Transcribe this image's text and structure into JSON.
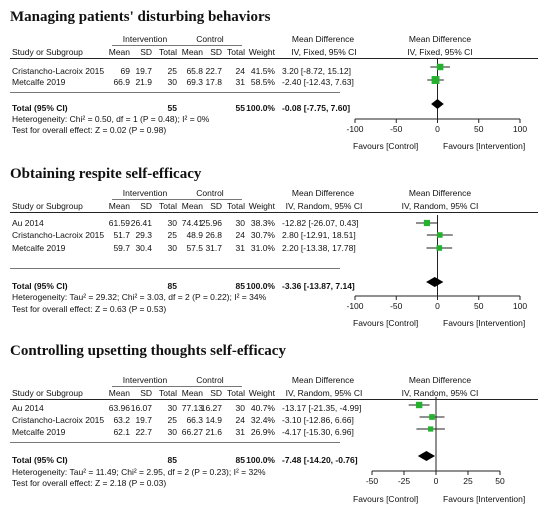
{
  "columns": {
    "study": "Study or Subgroup",
    "group1": "Intervention",
    "group2": "Control",
    "mean": "Mean",
    "sd": "SD",
    "total": "Total",
    "weight": "Weight",
    "md": "Mean Difference",
    "total_row": "Total (95% CI)"
  },
  "chart_data": [
    {
      "type": "forest",
      "title": "Managing patients' disturbing behaviors",
      "method": "IV, Fixed, 95% CI",
      "studies": [
        {
          "name": "Cristancho-Lacroix 2015",
          "mean1": "69",
          "sd1": "19.7",
          "n1": "25",
          "mean2": "65.8",
          "sd2": "22.7",
          "n2": "24",
          "weight": "41.5%",
          "ci_text": "3.20 [-8.72, 15.12]",
          "md": 3.2,
          "lo": -8.72,
          "hi": 15.12
        },
        {
          "name": "Metcalfe 2019",
          "mean1": "66.9",
          "sd1": "21.9",
          "n1": "30",
          "mean2": "69.3",
          "sd2": "17.8",
          "n2": "31",
          "weight": "58.5%",
          "ci_text": "-2.40 [-12.43, 7.63]",
          "md": -2.4,
          "lo": -12.43,
          "hi": 7.63
        }
      ],
      "total": {
        "n1": "55",
        "n2": "55",
        "weight": "100.0%",
        "ci_text": "-0.08 [-7.75, 7.60]",
        "md": -0.08,
        "lo": -7.75,
        "hi": 7.6
      },
      "heterogeneity": "Heterogeneity: Chi² = 0.50, df = 1 (P = 0.48); I² = 0%",
      "overall_test": "Test for overall effect: Z = 0.02 (P = 0.98)",
      "axis": {
        "min": -100,
        "max": 100,
        "ticks": [
          -100,
          -50,
          0,
          50,
          100
        ]
      },
      "favours_left": "Favours [Control]",
      "favours_right": "Favours [Intervention]",
      "marker_color": "#22b22d"
    },
    {
      "type": "forest",
      "title": "Obtaining respite self-efficacy",
      "method": "IV, Random, 95% CI",
      "studies": [
        {
          "name": "Au 2014",
          "mean1": "61.59",
          "sd1": "26.41",
          "n1": "30",
          "mean2": "74.41",
          "sd2": "25.96",
          "n2": "30",
          "weight": "38.3%",
          "ci_text": "-12.82 [-26.07, 0.43]",
          "md": -12.82,
          "lo": -26.07,
          "hi": 0.43
        },
        {
          "name": "Cristancho-Lacroix 2015",
          "mean1": "51.7",
          "sd1": "29.3",
          "n1": "25",
          "mean2": "48.9",
          "sd2": "26.8",
          "n2": "24",
          "weight": "30.7%",
          "ci_text": "2.80 [-12.91, 18.51]",
          "md": 2.8,
          "lo": -12.91,
          "hi": 18.51
        },
        {
          "name": "Metcalfe 2019",
          "mean1": "59.7",
          "sd1": "30.4",
          "n1": "30",
          "mean2": "57.5",
          "sd2": "31.7",
          "n2": "31",
          "weight": "31.0%",
          "ci_text": "2.20 [-13.38, 17.78]",
          "md": 2.2,
          "lo": -13.38,
          "hi": 17.78
        }
      ],
      "total": {
        "n1": "85",
        "n2": "85",
        "weight": "100.0%",
        "ci_text": "-3.36 [-13.87, 7.14]",
        "md": -3.36,
        "lo": -13.87,
        "hi": 7.14
      },
      "heterogeneity": "Heterogeneity: Tau² = 29.32; Chi² = 3.03, df = 2 (P = 0.22); I² = 34%",
      "overall_test": "Test for overall effect: Z = 0.63 (P = 0.53)",
      "axis": {
        "min": -100,
        "max": 100,
        "ticks": [
          -100,
          -50,
          0,
          50,
          100
        ]
      },
      "favours_left": "Favours [Control]",
      "favours_right": "Favours [Intervention]",
      "marker_color": "#22b22d"
    },
    {
      "type": "forest",
      "title": "Controlling upsetting thoughts self-efficacy",
      "method": "IV, Random, 95% CI",
      "studies": [
        {
          "name": "Au 2014",
          "mean1": "63.96",
          "sd1": "16.07",
          "n1": "30",
          "mean2": "77.13",
          "sd2": "16.27",
          "n2": "30",
          "weight": "40.7%",
          "ci_text": "-13.17 [-21.35, -4.99]",
          "md": -13.17,
          "lo": -21.35,
          "hi": -4.99
        },
        {
          "name": "Cristancho-Lacroix 2015",
          "mean1": "63.2",
          "sd1": "19.7",
          "n1": "25",
          "mean2": "66.3",
          "sd2": "14.9",
          "n2": "24",
          "weight": "32.4%",
          "ci_text": "-3.10 [-12.86, 6.66]",
          "md": -3.1,
          "lo": -12.86,
          "hi": 6.66
        },
        {
          "name": "Metcalfe 2019",
          "mean1": "62.1",
          "sd1": "22.7",
          "n1": "30",
          "mean2": "66.27",
          "sd2": "21.6",
          "n2": "31",
          "weight": "26.9%",
          "ci_text": "-4.17 [-15.30, 6.96]",
          "md": -4.17,
          "lo": -15.3,
          "hi": 6.96
        }
      ],
      "total": {
        "n1": "85",
        "n2": "85",
        "weight": "100.0%",
        "ci_text": "-7.48 [-14.20, -0.76]",
        "md": -7.48,
        "lo": -14.2,
        "hi": -0.76
      },
      "heterogeneity": "Heterogeneity: Tau² = 11.49; Chi² = 2.95, df = 2 (P = 0.23); I² = 32%",
      "overall_test": "Test for overall effect: Z = 2.18 (P = 0.03)",
      "axis": {
        "min": -50,
        "max": 50,
        "ticks": [
          -50,
          -25,
          0,
          25,
          50
        ]
      },
      "favours_left": "Favours [Control]",
      "favours_right": "Favours [Intervention]",
      "marker_color": "#22b22d"
    }
  ]
}
